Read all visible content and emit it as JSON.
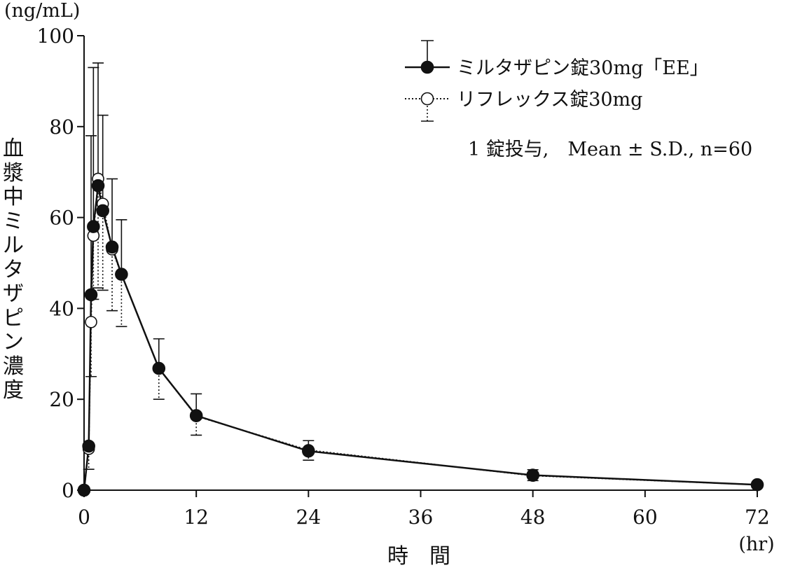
{
  "chart_data": {
    "type": "line",
    "title": "",
    "unit_label": "(ng/mL)",
    "xlabel": "時　間",
    "xunit": "(hr)",
    "ylabel": "血漿中ミルタザピン濃度",
    "xlim": [
      0,
      72
    ],
    "ylim": [
      0,
      100
    ],
    "xticks": [
      0,
      12,
      24,
      36,
      48,
      60,
      72
    ],
    "yticks": [
      0,
      20,
      40,
      60,
      80,
      100
    ],
    "x": [
      0,
      0.5,
      0.75,
      1,
      1.5,
      2,
      3,
      4,
      8,
      12,
      24,
      48,
      72
    ],
    "series": [
      {
        "name": "ミルタザピン錠30mg「EE」",
        "marker": "filled-circle",
        "line": "solid",
        "values": [
          0,
          9.7,
          43,
          58,
          67,
          61.5,
          53.5,
          47.5,
          26.8,
          16.4,
          8.6,
          3.3,
          1.2
        ],
        "sd": [
          0,
          0,
          35,
          35,
          27,
          21,
          15,
          12,
          6.5,
          4.8,
          2.3,
          1.2,
          0
        ]
      },
      {
        "name": "リフレックス錠30mg",
        "marker": "open-circle",
        "line": "dotted",
        "values": [
          0,
          9.1,
          37,
          56,
          68.5,
          63,
          53,
          47.5,
          26.8,
          16.3,
          8.8,
          3.2,
          1.2
        ],
        "sd": [
          0,
          4.5,
          12,
          14,
          24,
          19,
          13.5,
          11.5,
          6.8,
          4.2,
          2.2,
          1.1,
          0
        ]
      }
    ],
    "legend_position": "top-right",
    "annotation": "1 錠投与,　Mean ± S.D., n=60"
  }
}
